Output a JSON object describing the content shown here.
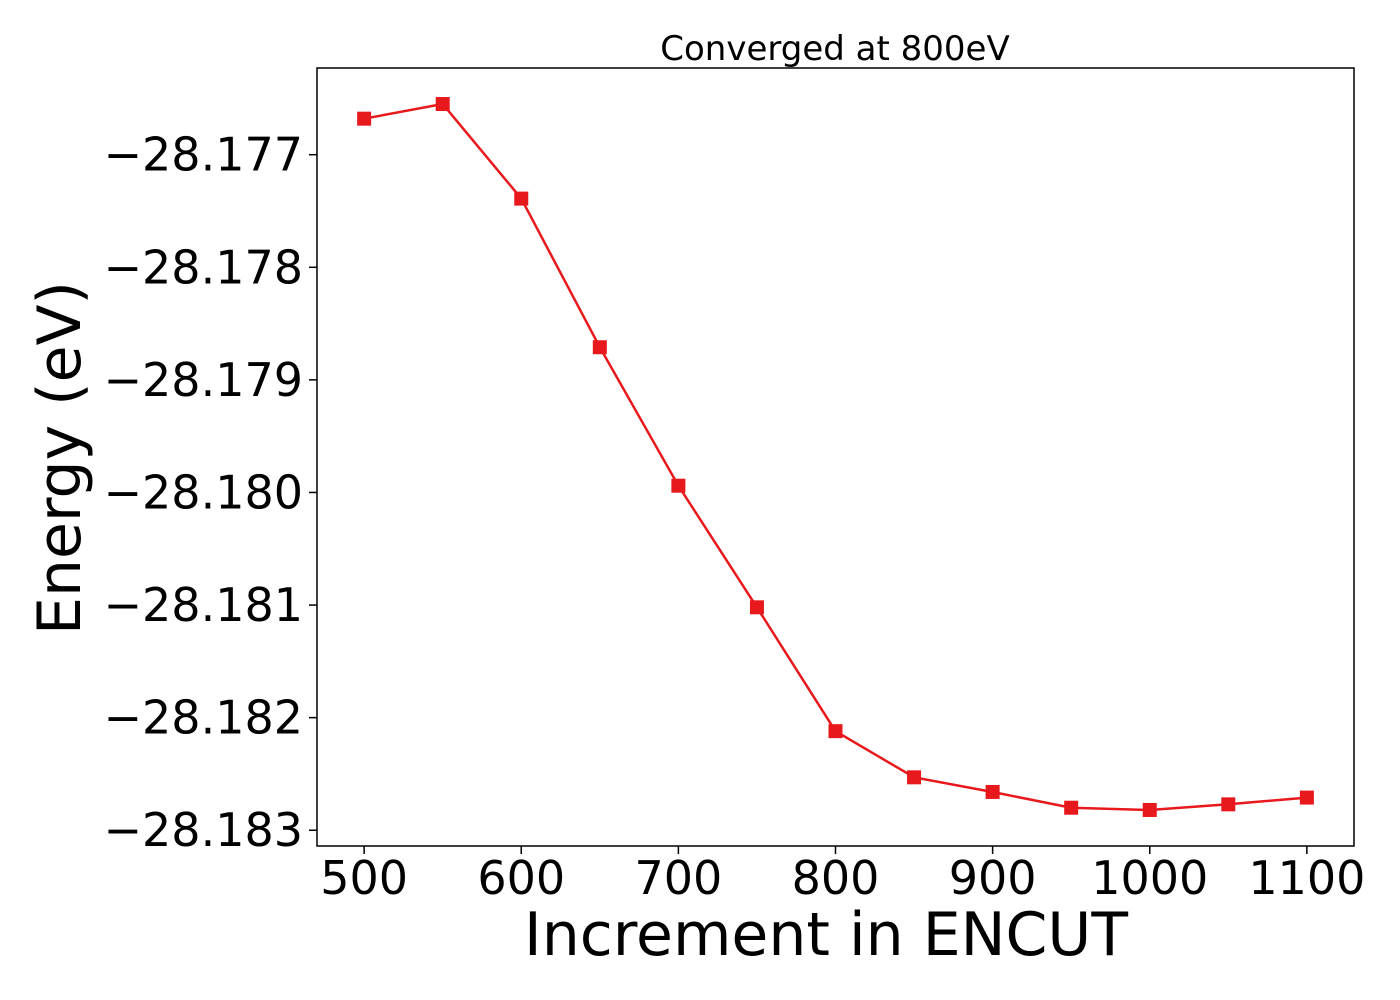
{
  "chart_data": {
    "type": "line",
    "title": "Converged at 800eV",
    "xlabel": "Increment in ENCUT",
    "ylabel": "Energy (eV)",
    "x": [
      500,
      550,
      600,
      650,
      700,
      750,
      800,
      850,
      900,
      950,
      1000,
      1050,
      1100
    ],
    "series": [
      {
        "values": [
          -28.17668,
          -28.17655,
          -28.17739,
          -28.17871,
          -28.17994,
          -28.18102,
          -28.18212,
          -28.18253,
          -28.18266,
          -28.1828,
          -28.18282,
          -28.18277,
          -28.18271
        ],
        "color": "#e8191d",
        "marker": "square"
      }
    ],
    "xticks": [
      500,
      600,
      700,
      800,
      900,
      1000,
      1100
    ],
    "xtick_labels": [
      "500",
      "600",
      "700",
      "800",
      "900",
      "1000",
      "1100"
    ],
    "yticks": [
      -28.177,
      -28.178,
      -28.179,
      -28.18,
      -28.181,
      -28.182,
      -28.183
    ],
    "ytick_labels": [
      "−28.177",
      "−28.178",
      "−28.179",
      "−28.180",
      "−28.181",
      "−28.182",
      "−28.183"
    ],
    "xlim": [
      470,
      1130
    ],
    "ylim": [
      -28.18314,
      -28.17623
    ],
    "grid": false,
    "legend": "none"
  }
}
